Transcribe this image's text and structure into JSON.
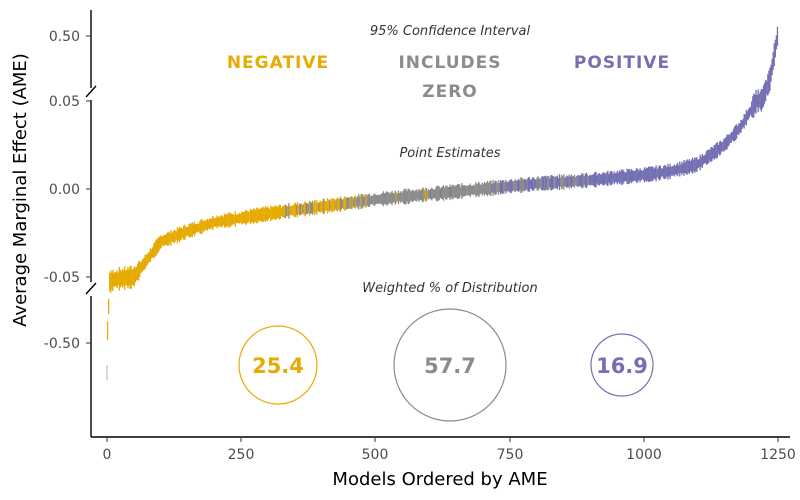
{
  "chart_data": {
    "type": "scatter",
    "title": "",
    "xlabel": "Models Ordered by AME",
    "ylabel": "Average Marginal Effect (AME)",
    "x_ticks": [
      "0",
      "250",
      "500",
      "750",
      "1000",
      "1250"
    ],
    "y_ticks_upper": [
      "0.50"
    ],
    "y_ticks_middle": [
      "0.05",
      "0.00",
      "-0.05"
    ],
    "y_ticks_lower": [
      "-0.50"
    ],
    "xlim": [
      0,
      1250
    ],
    "ylim_middle": [
      -0.05,
      0.05
    ],
    "n_models": 1250,
    "colors": {
      "negative": "#e6ab02",
      "includes_zero": "#8c8c8c",
      "positive": "#7570b3"
    },
    "annotations": {
      "ci_header": "95% Confidence Interval",
      "point_header": "Point Estimates",
      "dist_header": "Weighted % of Distribution"
    },
    "categories": [
      {
        "label_lines": [
          "NEGATIVE"
        ],
        "color": "#e6ab02",
        "percent": "25.4"
      },
      {
        "label_lines": [
          "INCLUDES",
          "ZERO"
        ],
        "color": "#8c8c8c",
        "percent": "57.7"
      },
      {
        "label_lines": [
          "POSITIVE"
        ],
        "color": "#7570b3",
        "percent": "16.9"
      }
    ],
    "ame_curve": [
      {
        "rank": 0,
        "ame": -0.5
      },
      {
        "rank": 5,
        "ame": -0.085
      },
      {
        "rank": 15,
        "ame": -0.066
      },
      {
        "rank": 30,
        "ame": -0.058
      },
      {
        "rank": 50,
        "ame": -0.05
      },
      {
        "rank": 75,
        "ame": -0.04
      },
      {
        "rank": 100,
        "ame": -0.03
      },
      {
        "rank": 150,
        "ame": -0.024
      },
      {
        "rank": 200,
        "ame": -0.019
      },
      {
        "rank": 300,
        "ame": -0.014
      },
      {
        "rank": 400,
        "ame": -0.01
      },
      {
        "rank": 500,
        "ame": -0.006
      },
      {
        "rank": 600,
        "ame": -0.003
      },
      {
        "rank": 700,
        "ame": 0.0
      },
      {
        "rank": 800,
        "ame": 0.003
      },
      {
        "rank": 900,
        "ame": 0.005
      },
      {
        "rank": 1000,
        "ame": 0.008
      },
      {
        "rank": 1050,
        "ame": 0.01
      },
      {
        "rank": 1100,
        "ame": 0.014
      },
      {
        "rank": 1150,
        "ame": 0.025
      },
      {
        "rank": 1180,
        "ame": 0.035
      },
      {
        "rank": 1200,
        "ame": 0.045
      },
      {
        "rank": 1220,
        "ame": 0.055
      },
      {
        "rank": 1235,
        "ame": 0.2
      },
      {
        "rank": 1250,
        "ame": 0.52
      }
    ],
    "ci_transitions": {
      "negative_until_rank": 460,
      "positive_from_rank": 730
    }
  }
}
